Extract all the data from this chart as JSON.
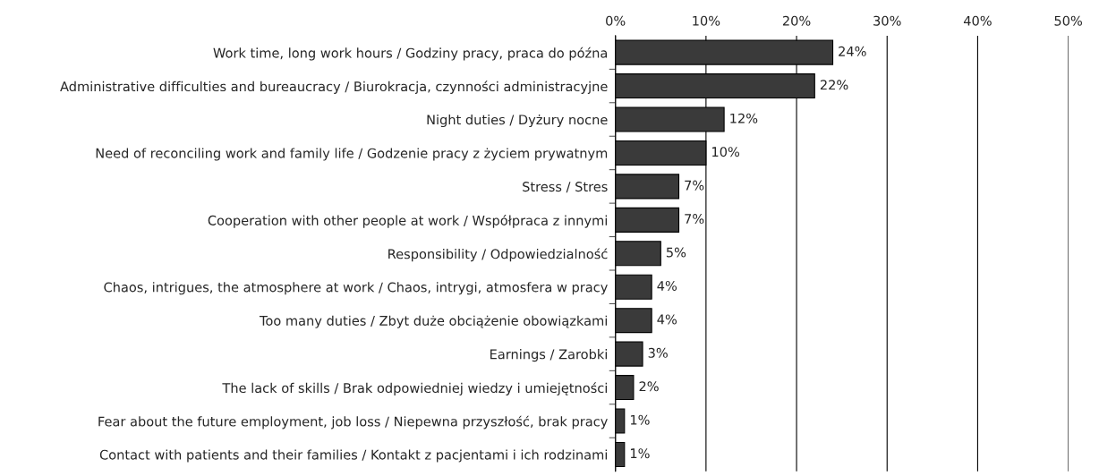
{
  "chart_data": {
    "type": "bar",
    "orientation": "horizontal",
    "categories": [
      "Work time, long work hours / Godziny pracy, praca do późna",
      "Administrative difficulties and bureaucracy / Biurokracja, czynności administracyjne",
      "Night duties / Dyżury nocne",
      "Need of reconciling work and family life / Godzenie pracy z życiem prywatnym",
      "Stress / Stres",
      "Cooperation with other people at work / Współpraca z innymi",
      "Responsibility / Odpowiedzialność",
      "Chaos, intrigues, the atmosphere at work / Chaos, intrygi, atmosfera w pracy",
      "Too many duties / Zbyt duże obciążenie obowiązkami",
      "Earnings / Zarobki",
      "The lack of skills / Brak odpowiedniej wiedzy i umiejętności",
      "Fear about the future employment, job loss / Niepewna przyszłość, brak pracy",
      "Contact with patients and their families / Kontakt z pacjentami i ich rodzinami"
    ],
    "values": [
      24,
      22,
      12,
      10,
      7,
      7,
      5,
      4,
      4,
      3,
      2,
      1,
      1
    ],
    "value_labels": [
      "24%",
      "22%",
      "12%",
      "10%",
      "7%",
      "7%",
      "5%",
      "4%",
      "4%",
      "3%",
      "2%",
      "1%",
      "1%"
    ],
    "color": "#3a3a3a",
    "xlim": [
      0,
      50
    ],
    "xticks": [
      {
        "value": 0,
        "label": "0%"
      },
      {
        "value": 10,
        "label": "10%"
      },
      {
        "value": 20,
        "label": "20%"
      },
      {
        "value": 30,
        "label": "30%"
      },
      {
        "value": 40,
        "label": "40%"
      },
      {
        "value": 50,
        "label": "50%"
      }
    ],
    "grid": "x"
  }
}
